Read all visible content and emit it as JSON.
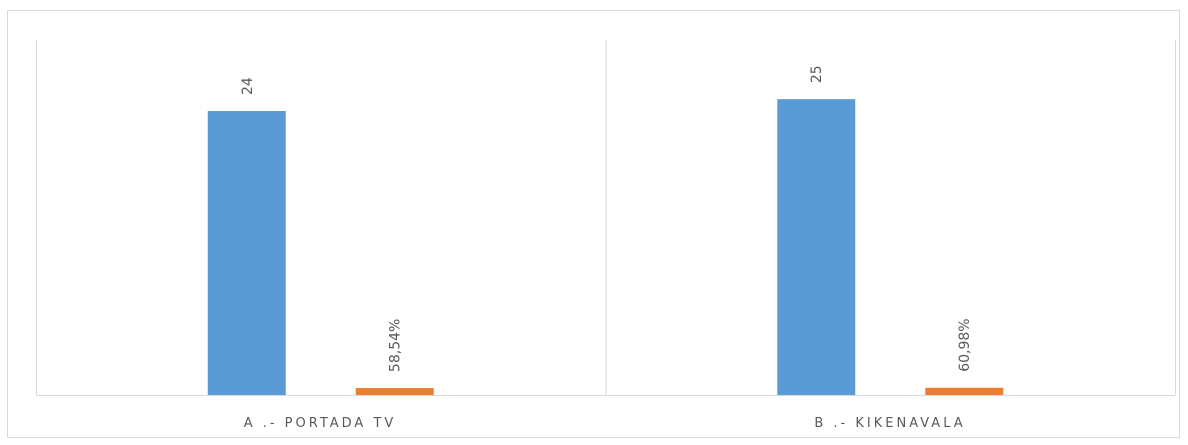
{
  "colors": {
    "series_1": "#5b9bd5",
    "series_2": "#ed7d31",
    "axis": "#d9d9d9",
    "frame": "#d9d9d9",
    "text": "#595959"
  },
  "chart_data": {
    "type": "bar",
    "categories": [
      "A .- PORTADA TV",
      "B .- KIKENAVALA"
    ],
    "series": [
      {
        "color": "#5b9bd5",
        "values": [
          24,
          25
        ],
        "labels": [
          "24",
          "25"
        ]
      },
      {
        "color": "#ed7d31",
        "values": [
          0.5854,
          0.6098
        ],
        "labels": [
          "58,54%",
          "60,98%"
        ]
      }
    ],
    "ylim": [
      0,
      30
    ],
    "grid": false,
    "legend": "none"
  }
}
